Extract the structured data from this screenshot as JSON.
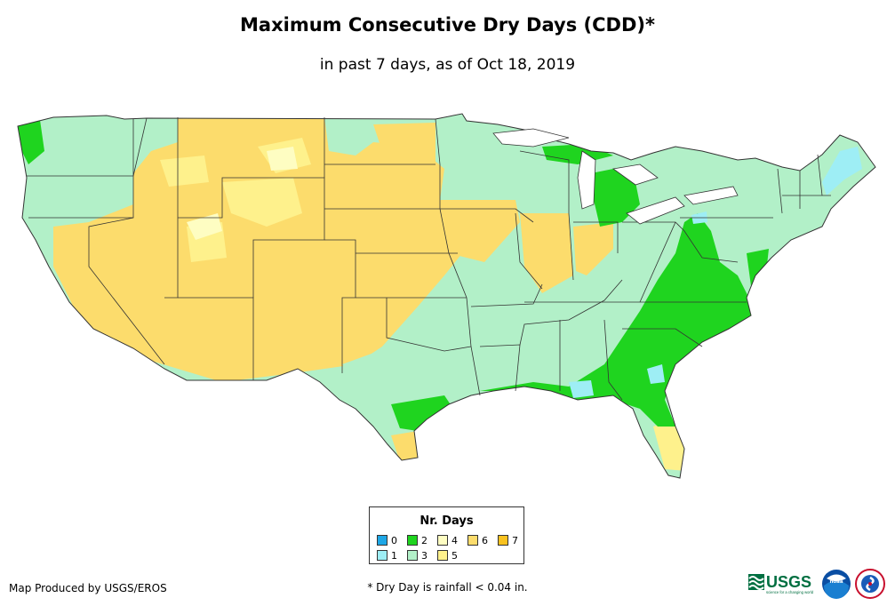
{
  "title": "Maximum Consecutive Dry Days (CDD)*",
  "subtitle": "in past 7 days, as of Oct 18, 2019",
  "legend": {
    "title": "Nr. Days",
    "items": [
      {
        "label": "0",
        "color": "#1ea7e6"
      },
      {
        "label": "1",
        "color": "#9eeef5"
      },
      {
        "label": "2",
        "color": "#1fd41f"
      },
      {
        "label": "3",
        "color": "#b2f0c8"
      },
      {
        "label": "4",
        "color": "#fefdc2"
      },
      {
        "label": "5",
        "color": "#fef18c"
      },
      {
        "label": "6",
        "color": "#fcdc6c"
      },
      {
        "label": "7",
        "color": "#f9c21f"
      }
    ]
  },
  "producer": "Map Produced by USGS/EROS",
  "footnote": "* Dry Day is rainfall < 0.04 in.",
  "logos": {
    "usgs": "USGS",
    "usgs_tagline": "science for a changing world",
    "noaa": "noaa"
  }
}
